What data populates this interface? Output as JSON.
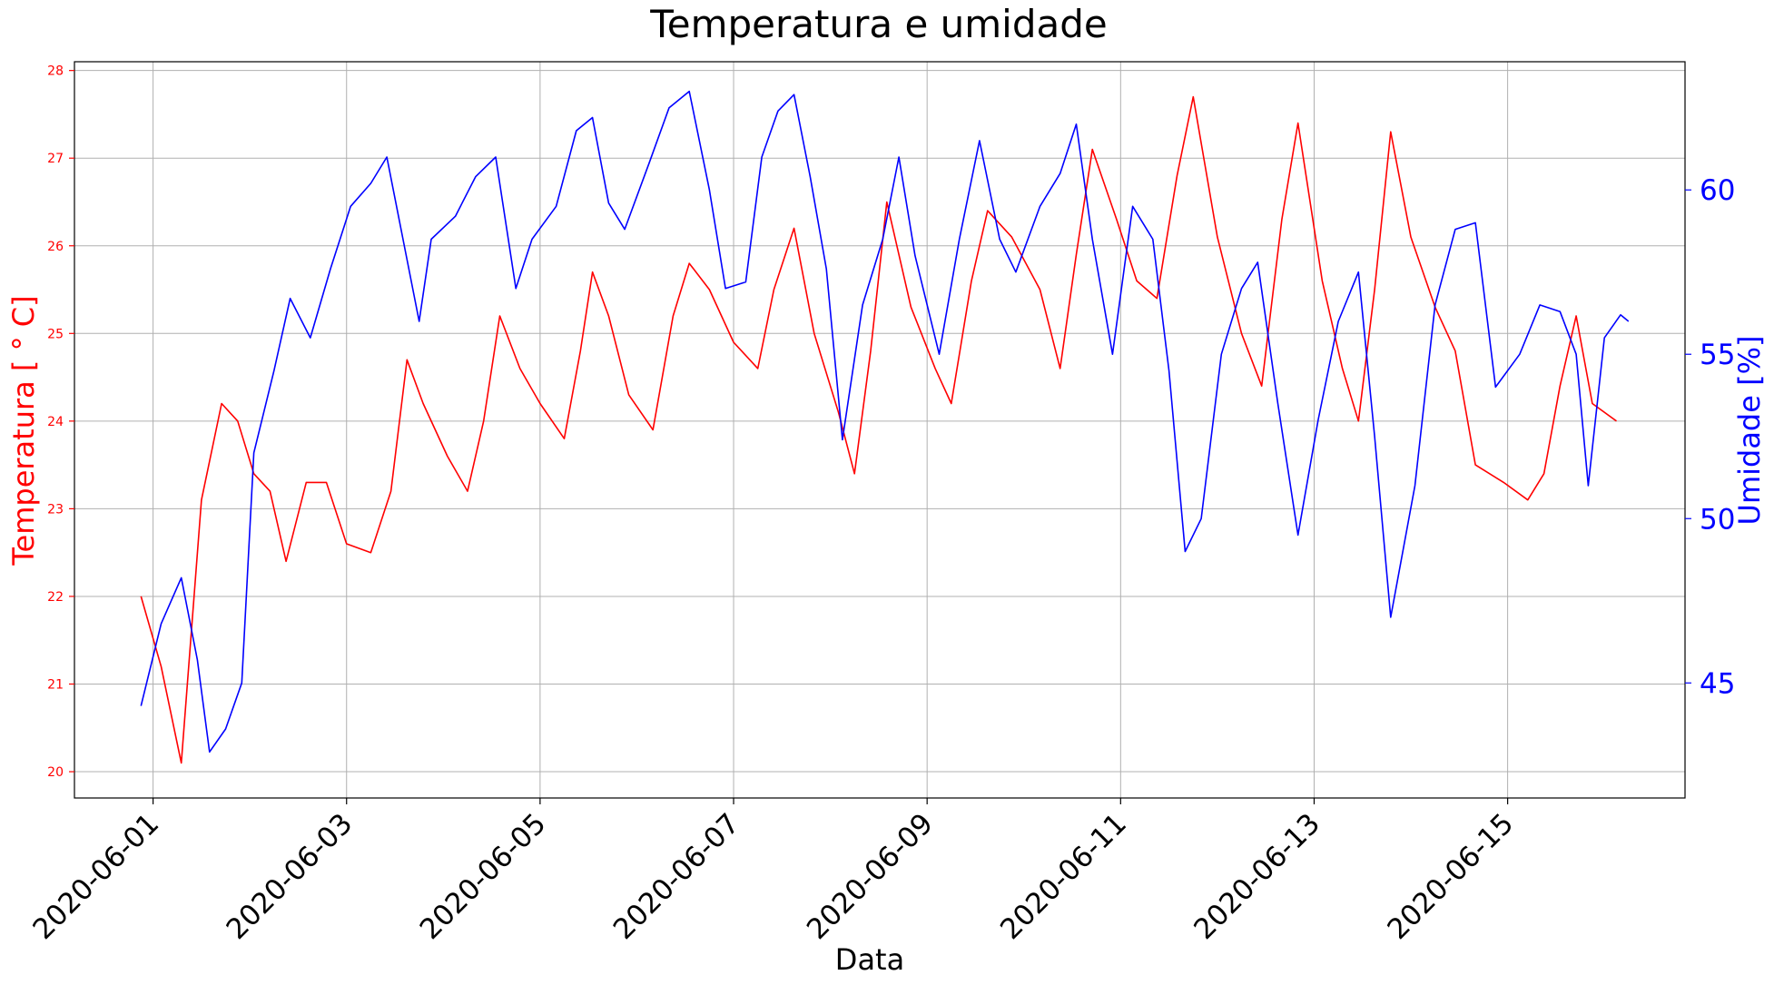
{
  "chart_data": {
    "type": "line",
    "title": "Temperatura e umidade",
    "xlabel": "Data",
    "ylabel_left": "Temperatura [$^\\circ$C]",
    "ylabel_left_display": "Temperatura [ ° C]",
    "ylabel_right": "Umidade [%]",
    "xlim": [
      "2020-05-31T04:30",
      "2020-06-16T20:00"
    ],
    "ylim_left": [
      19.7,
      28.1
    ],
    "ylim_right": [
      41.5,
      63.9
    ],
    "x_ticks": [
      "2020-06-01",
      "2020-06-03",
      "2020-06-05",
      "2020-06-07",
      "2020-06-09",
      "2020-06-11",
      "2020-06-13",
      "2020-06-15"
    ],
    "y_left_ticks": [
      20,
      21,
      22,
      23,
      24,
      25,
      26,
      27,
      28
    ],
    "y_right_ticks": [
      45,
      50,
      55,
      60
    ],
    "grid": true,
    "colors": {
      "temperature": "#ff0000",
      "humidity": "#0000ff",
      "grid": "#b0b0b0"
    },
    "series": [
      {
        "axis": "left",
        "color": "#ff0000",
        "points": [
          [
            "2020-05-31T21:00",
            22.0
          ],
          [
            "2020-06-01T02:00",
            21.2
          ],
          [
            "2020-06-01T07:00",
            20.1
          ],
          [
            "2020-06-01T12:00",
            23.1
          ],
          [
            "2020-06-01T17:00",
            24.2
          ],
          [
            "2020-06-01T21:00",
            24.0
          ],
          [
            "2020-06-02T01:00",
            23.4
          ],
          [
            "2020-06-02T05:00",
            23.2
          ],
          [
            "2020-06-02T09:00",
            22.4
          ],
          [
            "2020-06-02T14:00",
            23.3
          ],
          [
            "2020-06-02T19:00",
            23.3
          ],
          [
            "2020-06-03T00:00",
            22.6
          ],
          [
            "2020-06-03T06:00",
            22.5
          ],
          [
            "2020-06-03T11:00",
            23.2
          ],
          [
            "2020-06-03T15:00",
            24.7
          ],
          [
            "2020-06-03T19:00",
            24.2
          ],
          [
            "2020-06-04T01:00",
            23.6
          ],
          [
            "2020-06-04T06:00",
            23.2
          ],
          [
            "2020-06-04T10:00",
            24.0
          ],
          [
            "2020-06-04T14:00",
            25.2
          ],
          [
            "2020-06-04T19:00",
            24.6
          ],
          [
            "2020-06-05T00:00",
            24.2
          ],
          [
            "2020-06-05T06:00",
            23.8
          ],
          [
            "2020-06-05T10:00",
            24.8
          ],
          [
            "2020-06-05T13:00",
            25.7
          ],
          [
            "2020-06-05T17:00",
            25.2
          ],
          [
            "2020-06-05T22:00",
            24.3
          ],
          [
            "2020-06-06T04:00",
            23.9
          ],
          [
            "2020-06-06T09:00",
            25.2
          ],
          [
            "2020-06-06T13:00",
            25.8
          ],
          [
            "2020-06-06T18:00",
            25.5
          ],
          [
            "2020-06-07T00:00",
            24.9
          ],
          [
            "2020-06-07T06:00",
            24.6
          ],
          [
            "2020-06-07T10:00",
            25.5
          ],
          [
            "2020-06-07T15:00",
            26.2
          ],
          [
            "2020-06-07T20:00",
            25.0
          ],
          [
            "2020-06-08T02:00",
            24.1
          ],
          [
            "2020-06-08T06:00",
            23.4
          ],
          [
            "2020-06-08T10:00",
            24.8
          ],
          [
            "2020-06-08T14:00",
            26.5
          ],
          [
            "2020-06-08T20:00",
            25.3
          ],
          [
            "2020-06-09T02:00",
            24.6
          ],
          [
            "2020-06-09T06:00",
            24.2
          ],
          [
            "2020-06-09T11:00",
            25.6
          ],
          [
            "2020-06-09T15:00",
            26.4
          ],
          [
            "2020-06-09T21:00",
            26.1
          ],
          [
            "2020-06-10T04:00",
            25.5
          ],
          [
            "2020-06-10T09:00",
            24.6
          ],
          [
            "2020-06-10T13:00",
            25.9
          ],
          [
            "2020-06-10T17:00",
            27.1
          ],
          [
            "2020-06-10T23:00",
            26.3
          ],
          [
            "2020-06-11T04:00",
            25.6
          ],
          [
            "2020-06-11T09:00",
            25.4
          ],
          [
            "2020-06-11T14:00",
            26.8
          ],
          [
            "2020-06-11T18:00",
            27.7
          ],
          [
            "2020-06-12T00:00",
            26.1
          ],
          [
            "2020-06-12T06:00",
            25.0
          ],
          [
            "2020-06-12T11:00",
            24.4
          ],
          [
            "2020-06-12T16:00",
            26.3
          ],
          [
            "2020-06-12T20:00",
            27.4
          ],
          [
            "2020-06-13T02:00",
            25.6
          ],
          [
            "2020-06-13T07:00",
            24.6
          ],
          [
            "2020-06-13T11:00",
            24.0
          ],
          [
            "2020-06-13T15:00",
            25.5
          ],
          [
            "2020-06-13T19:00",
            27.3
          ],
          [
            "2020-06-14T00:00",
            26.1
          ],
          [
            "2020-06-14T06:00",
            25.3
          ],
          [
            "2020-06-14T11:00",
            24.8
          ],
          [
            "2020-06-14T16:00",
            23.5
          ],
          [
            "2020-06-14T23:00",
            23.3
          ],
          [
            "2020-06-15T05:00",
            23.1
          ],
          [
            "2020-06-15T09:00",
            23.4
          ],
          [
            "2020-06-15T13:00",
            24.4
          ],
          [
            "2020-06-15T17:00",
            25.2
          ],
          [
            "2020-06-15T21:00",
            24.2
          ],
          [
            "2020-06-16T03:00",
            24.0
          ]
        ]
      },
      {
        "axis": "right",
        "color": "#0000ff",
        "points": [
          [
            "2020-05-31T21:00",
            44.3
          ],
          [
            "2020-06-01T02:00",
            46.8
          ],
          [
            "2020-06-01T07:00",
            48.2
          ],
          [
            "2020-06-01T11:00",
            45.7
          ],
          [
            "2020-06-01T14:00",
            42.9
          ],
          [
            "2020-06-01T18:00",
            43.6
          ],
          [
            "2020-06-01T22:00",
            45.0
          ],
          [
            "2020-06-02T01:00",
            52.0
          ],
          [
            "2020-06-02T06:00",
            54.5
          ],
          [
            "2020-06-02T10:00",
            56.7
          ],
          [
            "2020-06-02T15:00",
            55.5
          ],
          [
            "2020-06-02T20:00",
            57.6
          ],
          [
            "2020-06-03T01:00",
            59.5
          ],
          [
            "2020-06-03T06:00",
            60.2
          ],
          [
            "2020-06-03T10:00",
            61.0
          ],
          [
            "2020-06-03T14:00",
            58.5
          ],
          [
            "2020-06-03T18:00",
            56.0
          ],
          [
            "2020-06-03T21:00",
            58.5
          ],
          [
            "2020-06-04T03:00",
            59.2
          ],
          [
            "2020-06-04T08:00",
            60.4
          ],
          [
            "2020-06-04T13:00",
            61.0
          ],
          [
            "2020-06-04T18:00",
            57.0
          ],
          [
            "2020-06-04T22:00",
            58.5
          ],
          [
            "2020-06-05T04:00",
            59.5
          ],
          [
            "2020-06-05T09:00",
            61.8
          ],
          [
            "2020-06-05T13:00",
            62.2
          ],
          [
            "2020-06-05T17:00",
            59.6
          ],
          [
            "2020-06-05T21:00",
            58.8
          ],
          [
            "2020-06-06T03:00",
            60.8
          ],
          [
            "2020-06-06T08:00",
            62.5
          ],
          [
            "2020-06-06T13:00",
            63.0
          ],
          [
            "2020-06-06T18:00",
            60.0
          ],
          [
            "2020-06-06T22:00",
            57.0
          ],
          [
            "2020-06-07T03:00",
            57.2
          ],
          [
            "2020-06-07T07:00",
            61.0
          ],
          [
            "2020-06-07T11:00",
            62.4
          ],
          [
            "2020-06-07T15:00",
            62.9
          ],
          [
            "2020-06-07T19:00",
            60.4
          ],
          [
            "2020-06-07T23:00",
            57.6
          ],
          [
            "2020-06-08T03:00",
            52.4
          ],
          [
            "2020-06-08T08:00",
            56.5
          ],
          [
            "2020-06-08T13:00",
            58.5
          ],
          [
            "2020-06-08T17:00",
            61.0
          ],
          [
            "2020-06-08T21:00",
            58.0
          ],
          [
            "2020-06-09T03:00",
            55.0
          ],
          [
            "2020-06-09T08:00",
            58.5
          ],
          [
            "2020-06-09T13:00",
            61.5
          ],
          [
            "2020-06-09T18:00",
            58.5
          ],
          [
            "2020-06-09T22:00",
            57.5
          ],
          [
            "2020-06-10T04:00",
            59.5
          ],
          [
            "2020-06-10T09:00",
            60.5
          ],
          [
            "2020-06-10T13:00",
            62.0
          ],
          [
            "2020-06-10T17:00",
            58.5
          ],
          [
            "2020-06-10T22:00",
            55.0
          ],
          [
            "2020-06-11T03:00",
            59.5
          ],
          [
            "2020-06-11T08:00",
            58.5
          ],
          [
            "2020-06-11T12:00",
            54.5
          ],
          [
            "2020-06-11T16:00",
            49.0
          ],
          [
            "2020-06-11T20:00",
            50.0
          ],
          [
            "2020-06-12T01:00",
            55.0
          ],
          [
            "2020-06-12T06:00",
            57.0
          ],
          [
            "2020-06-12T10:00",
            57.8
          ],
          [
            "2020-06-12T15:00",
            53.5
          ],
          [
            "2020-06-12T20:00",
            49.5
          ],
          [
            "2020-06-13T01:00",
            53.0
          ],
          [
            "2020-06-13T06:00",
            56.0
          ],
          [
            "2020-06-13T11:00",
            57.5
          ],
          [
            "2020-06-13T15:00",
            52.5
          ],
          [
            "2020-06-13T19:00",
            47.0
          ],
          [
            "2020-06-14T01:00",
            51.0
          ],
          [
            "2020-06-14T06:00",
            56.5
          ],
          [
            "2020-06-14T11:00",
            58.8
          ],
          [
            "2020-06-14T16:00",
            59.0
          ],
          [
            "2020-06-14T21:00",
            54.0
          ],
          [
            "2020-06-15T03:00",
            55.0
          ],
          [
            "2020-06-15T08:00",
            56.5
          ],
          [
            "2020-06-15T13:00",
            56.3
          ],
          [
            "2020-06-15T17:00",
            55.0
          ],
          [
            "2020-06-15T20:00",
            51.0
          ],
          [
            "2020-06-16T00:00",
            55.5
          ],
          [
            "2020-06-16T04:00",
            56.2
          ],
          [
            "2020-06-16T06:00",
            56.0
          ]
        ]
      }
    ]
  }
}
